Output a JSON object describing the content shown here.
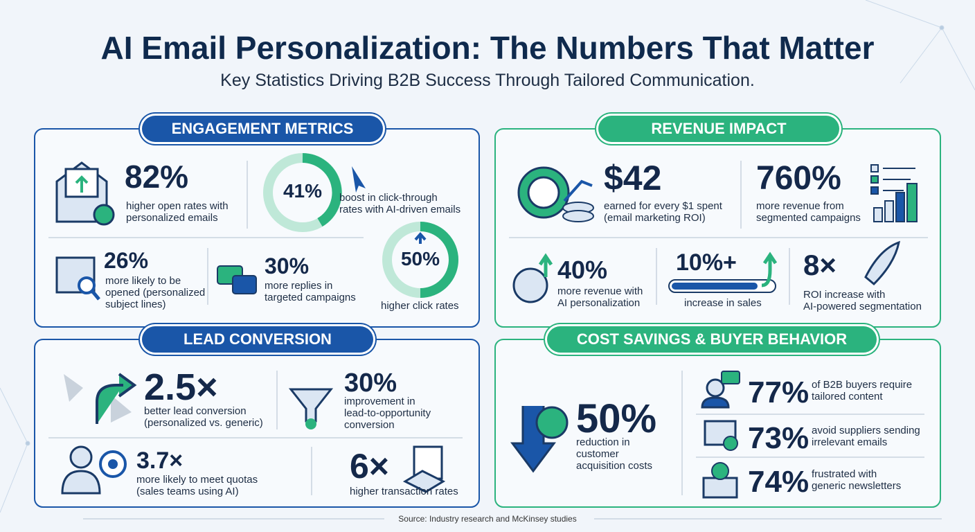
{
  "header": {
    "title": "AI Email Personalization: The Numbers That Matter",
    "subtitle": "Key Statistics Driving B2B Success Through Tailored Communication."
  },
  "sections": [
    {
      "title": "ENGAGEMENT METRICS",
      "stats": [
        {
          "value": "82%",
          "lines": [
            "higher open rates with",
            "personalized emails"
          ]
        },
        {
          "value": "41%",
          "lines": [
            "boost in click-through",
            "rates with AI-driven emails"
          ]
        },
        {
          "value": "26%",
          "lines": [
            "more likely to be",
            "opened (personalized",
            "subject lines)"
          ]
        },
        {
          "value": "30%",
          "lines": [
            "more replies in",
            "targeted campaigns"
          ]
        },
        {
          "value": "50%",
          "lines": [
            "higher click rates"
          ]
        }
      ]
    },
    {
      "title": "REVENUE IMPACT",
      "stats": [
        {
          "value": "$42",
          "lines": [
            "earned for every $1 spent",
            "(email marketing ROI)"
          ]
        },
        {
          "value": "760%",
          "lines": [
            "more revenue from",
            "segmented campaigns"
          ]
        },
        {
          "value": "40%",
          "lines": [
            "more revenue with",
            "AI personalization"
          ]
        },
        {
          "value": "10%+",
          "lines": [
            "increase in sales"
          ]
        },
        {
          "value": "8×",
          "lines": [
            "ROI increase with",
            "AI-powered segmentation"
          ]
        }
      ]
    },
    {
      "title": "LEAD CONVERSION",
      "stats": [
        {
          "value": "2.5×",
          "lines": [
            "better lead conversion",
            "(personalized vs. generic)"
          ]
        },
        {
          "value": "30%",
          "lines": [
            "improvement in",
            "lead-to-opportunity",
            "conversion"
          ]
        },
        {
          "value": "3.7×",
          "lines": [
            "more likely to meet quotas",
            "(sales teams using AI)"
          ]
        },
        {
          "value": "6×",
          "lines": [
            "higher transaction rates"
          ]
        }
      ]
    },
    {
      "title": "COST SAVINGS & BUYER BEHAVIOR",
      "stats": [
        {
          "value": "50%",
          "lines": [
            "reduction in",
            "customer",
            "acquisition costs"
          ]
        },
        {
          "value": "77%",
          "lines": [
            "of B2B buyers require",
            "tailored content"
          ]
        },
        {
          "value": "73%",
          "lines": [
            "avoid suppliers sending",
            "irrelevant emails"
          ]
        },
        {
          "value": "74%",
          "lines": [
            "frustrated with",
            "generic newsletters"
          ]
        }
      ]
    }
  ],
  "source": "Source: Industry research and McKinsey studies"
}
